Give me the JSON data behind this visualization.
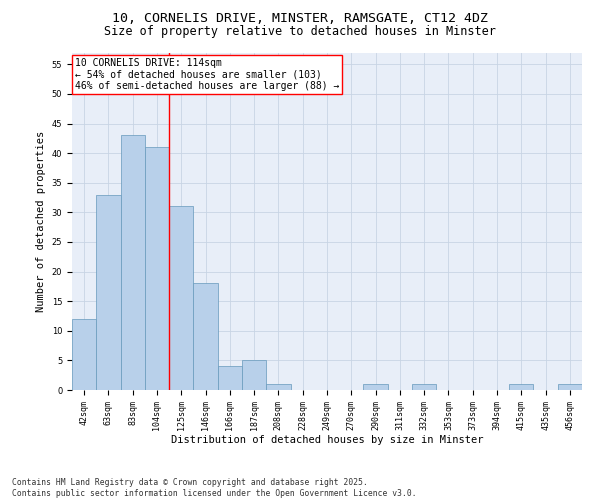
{
  "title_line1": "10, CORNELIS DRIVE, MINSTER, RAMSGATE, CT12 4DZ",
  "title_line2": "Size of property relative to detached houses in Minster",
  "xlabel": "Distribution of detached houses by size in Minster",
  "ylabel": "Number of detached properties",
  "bar_labels": [
    "42sqm",
    "63sqm",
    "83sqm",
    "104sqm",
    "125sqm",
    "146sqm",
    "166sqm",
    "187sqm",
    "208sqm",
    "228sqm",
    "249sqm",
    "270sqm",
    "290sqm",
    "311sqm",
    "332sqm",
    "353sqm",
    "373sqm",
    "394sqm",
    "415sqm",
    "435sqm",
    "456sqm"
  ],
  "bar_values": [
    12,
    33,
    43,
    41,
    31,
    18,
    4,
    5,
    1,
    0,
    0,
    0,
    1,
    0,
    1,
    0,
    0,
    0,
    1,
    0,
    1
  ],
  "bar_color": "#b8d0ea",
  "bar_edgecolor": "#6699bb",
  "grid_color": "#c8d4e4",
  "bg_color": "#e8eef8",
  "vline_x": 3.5,
  "vline_color": "red",
  "annotation_text": "10 CORNELIS DRIVE: 114sqm\n← 54% of detached houses are smaller (103)\n46% of semi-detached houses are larger (88) →",
  "annotation_box_color": "white",
  "annotation_box_edgecolor": "red",
  "ylim": [
    0,
    57
  ],
  "yticks": [
    0,
    5,
    10,
    15,
    20,
    25,
    30,
    35,
    40,
    45,
    50,
    55
  ],
  "footer": "Contains HM Land Registry data © Crown copyright and database right 2025.\nContains public sector information licensed under the Open Government Licence v3.0.",
  "title_fontsize": 9.5,
  "subtitle_fontsize": 8.5,
  "axis_label_fontsize": 7.5,
  "tick_fontsize": 6.0,
  "annotation_fontsize": 7.0,
  "footer_fontsize": 5.8,
  "ylabel_fontsize": 7.5
}
